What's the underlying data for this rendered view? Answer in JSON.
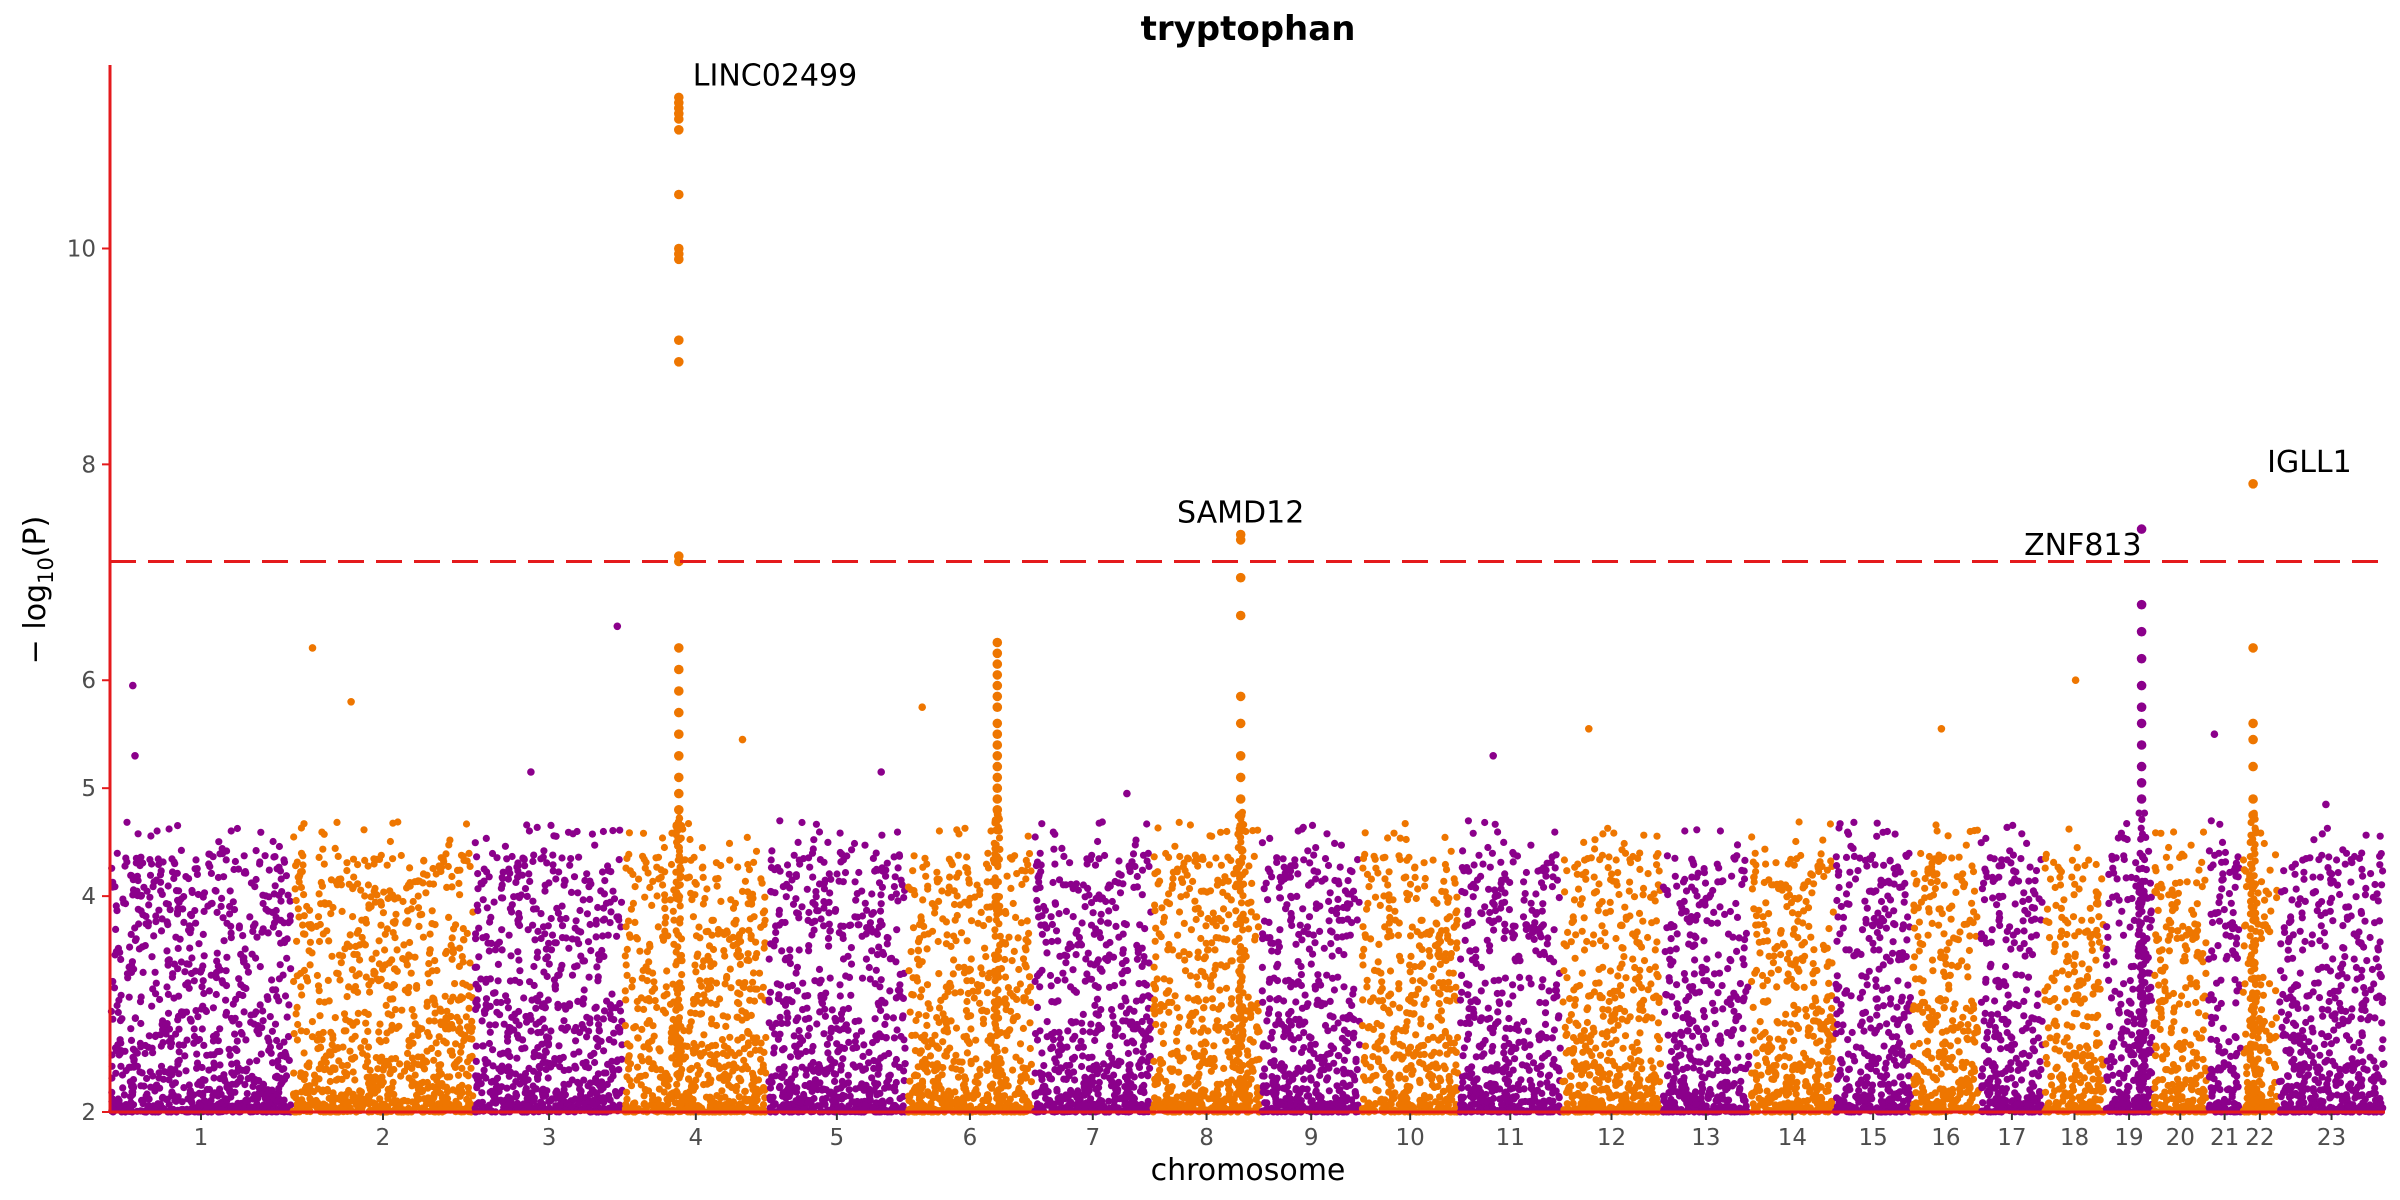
{
  "chart_data": {
    "type": "scatter",
    "title": "tryptophan",
    "xlabel": "chromosome",
    "ylabel_parts": [
      "− log",
      "10",
      "(P)"
    ],
    "ylim": [
      2,
      11.7
    ],
    "yticks": [
      2,
      4,
      5,
      6,
      8,
      10
    ],
    "threshold": 7.1,
    "colors": {
      "odd": "#8B008B",
      "even": "#EE7600",
      "axis": "#E41A1C",
      "threshold": "#E41A1C"
    },
    "chromosomes": [
      {
        "label": "1",
        "start": 0,
        "end": 8.0
      },
      {
        "label": "2",
        "start": 8.0,
        "end": 16.0
      },
      {
        "label": "3",
        "start": 16.0,
        "end": 22.6
      },
      {
        "label": "4",
        "start": 22.6,
        "end": 28.9
      },
      {
        "label": "5",
        "start": 28.9,
        "end": 35.0
      },
      {
        "label": "6",
        "start": 35.0,
        "end": 40.6
      },
      {
        "label": "7",
        "start": 40.6,
        "end": 45.8
      },
      {
        "label": "8",
        "start": 45.8,
        "end": 50.6
      },
      {
        "label": "9",
        "start": 50.6,
        "end": 55.0
      },
      {
        "label": "10",
        "start": 55.0,
        "end": 59.3
      },
      {
        "label": "11",
        "start": 59.3,
        "end": 63.8
      },
      {
        "label": "12",
        "start": 63.8,
        "end": 68.2
      },
      {
        "label": "13",
        "start": 68.2,
        "end": 72.1
      },
      {
        "label": "14",
        "start": 72.1,
        "end": 75.8
      },
      {
        "label": "15",
        "start": 75.8,
        "end": 79.2
      },
      {
        "label": "16",
        "start": 79.2,
        "end": 82.2
      },
      {
        "label": "17",
        "start": 82.2,
        "end": 85.0
      },
      {
        "label": "18",
        "start": 85.0,
        "end": 87.7
      },
      {
        "label": "19",
        "start": 87.7,
        "end": 89.8
      },
      {
        "label": "20",
        "start": 89.8,
        "end": 92.2
      },
      {
        "label": "21",
        "start": 92.2,
        "end": 93.7
      },
      {
        "label": "22",
        "start": 93.7,
        "end": 95.3
      },
      {
        "label": "23",
        "start": 95.3,
        "end": 100.0
      }
    ],
    "peaks": [
      {
        "chr": "4",
        "pos": 25.0,
        "values": [
          11.4,
          11.35,
          11.3,
          11.25,
          11.2,
          11.1,
          10.5,
          10.0,
          9.95,
          9.9,
          9.15,
          8.95,
          7.15,
          7.1,
          6.3,
          6.1,
          5.9,
          5.7,
          5.5,
          5.3,
          5.1,
          4.95,
          4.8
        ]
      },
      {
        "chr": "6",
        "pos": 39.0,
        "values": [
          6.35,
          6.25,
          6.15,
          6.05,
          5.95,
          5.85,
          5.75,
          5.6,
          5.5,
          5.4,
          5.3,
          5.2,
          5.1,
          5.0,
          4.9,
          4.8
        ]
      },
      {
        "chr": "8",
        "pos": 49.7,
        "values": [
          7.35,
          7.3,
          6.95,
          6.6,
          5.85,
          5.6,
          5.3,
          5.1,
          4.9,
          4.75
        ]
      },
      {
        "chr": "19",
        "pos": 89.3,
        "values": [
          7.4,
          6.7,
          6.45,
          6.2,
          5.95,
          5.75,
          5.6,
          5.4,
          5.2,
          5.05,
          4.9
        ]
      },
      {
        "chr": "22",
        "pos": 94.2,
        "values": [
          7.82,
          6.3,
          5.6,
          5.45,
          5.2,
          4.9,
          4.75
        ]
      }
    ],
    "outliers": [
      {
        "chr": "1",
        "pos": 1.0,
        "value": 5.95
      },
      {
        "chr": "1",
        "pos": 1.1,
        "value": 5.3
      },
      {
        "chr": "2",
        "pos": 8.9,
        "value": 6.3
      },
      {
        "chr": "2",
        "pos": 10.6,
        "value": 5.8
      },
      {
        "chr": "3",
        "pos": 18.5,
        "value": 5.15
      },
      {
        "chr": "3",
        "pos": 22.3,
        "value": 6.5
      },
      {
        "chr": "4",
        "pos": 27.8,
        "value": 5.45
      },
      {
        "chr": "5",
        "pos": 33.9,
        "value": 5.15
      },
      {
        "chr": "6",
        "pos": 35.7,
        "value": 5.75
      },
      {
        "chr": "7",
        "pos": 44.7,
        "value": 4.95
      },
      {
        "chr": "11",
        "pos": 60.8,
        "value": 5.3
      },
      {
        "chr": "12",
        "pos": 65.0,
        "value": 5.55
      },
      {
        "chr": "16",
        "pos": 80.5,
        "value": 5.55
      },
      {
        "chr": "18",
        "pos": 86.4,
        "value": 6.0
      },
      {
        "chr": "21",
        "pos": 92.5,
        "value": 5.5
      },
      {
        "chr": "23",
        "pos": 97.4,
        "value": 4.85
      }
    ],
    "annotations": [
      {
        "text": "LINC02499",
        "x": 25.0,
        "y": 11.4,
        "anchor": "start"
      },
      {
        "text": "SAMD12",
        "x": 49.7,
        "y": 7.35,
        "anchor": "middle"
      },
      {
        "text": "ZNF813",
        "x": 89.3,
        "y": 7.05,
        "anchor": "end"
      },
      {
        "text": "IGLL1",
        "x": 94.2,
        "y": 7.82,
        "anchor": "start"
      }
    ]
  }
}
